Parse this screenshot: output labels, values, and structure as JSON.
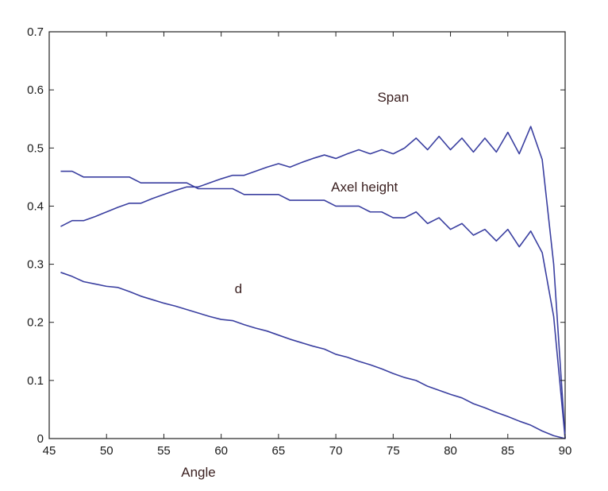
{
  "chart_data": {
    "type": "line",
    "title": "",
    "xlabel": "Angle",
    "ylabel": "",
    "xlim": [
      45,
      90
    ],
    "ylim": [
      0,
      0.7
    ],
    "xticks": [
      "45",
      "50",
      "55",
      "60",
      "65",
      "70",
      "75",
      "80",
      "85",
      "90"
    ],
    "yticks": [
      "0",
      "0.1",
      "0.2",
      "0.3",
      "0.4",
      "0.5",
      "0.6",
      "0.7"
    ],
    "grid": false,
    "legend": "none",
    "series": [
      {
        "name": "Span",
        "color": "#3a3fa0",
        "x": [
          46,
          47,
          48,
          49,
          50,
          51,
          52,
          53,
          54,
          55,
          56,
          57,
          58,
          59,
          60,
          61,
          62,
          63,
          64,
          65,
          66,
          67,
          68,
          69,
          70,
          71,
          72,
          73,
          74,
          75,
          76,
          77,
          78,
          79,
          80,
          81,
          82,
          83,
          84,
          85,
          86,
          87,
          88,
          89,
          90
        ],
        "y": [
          0.365,
          0.375,
          0.375,
          0.382,
          0.39,
          0.398,
          0.405,
          0.405,
          0.413,
          0.42,
          0.427,
          0.433,
          0.433,
          0.44,
          0.447,
          0.453,
          0.453,
          0.46,
          0.467,
          0.473,
          0.467,
          0.475,
          0.482,
          0.488,
          0.482,
          0.49,
          0.497,
          0.49,
          0.497,
          0.49,
          0.5,
          0.517,
          0.497,
          0.52,
          0.497,
          0.517,
          0.493,
          0.517,
          0.493,
          0.527,
          0.49,
          0.537,
          0.48,
          0.3,
          0.0
        ]
      },
      {
        "name": "Axel height",
        "color": "#3a3fa0",
        "x": [
          46,
          47,
          48,
          49,
          50,
          51,
          52,
          53,
          54,
          55,
          56,
          57,
          58,
          59,
          60,
          61,
          62,
          63,
          64,
          65,
          66,
          67,
          68,
          69,
          70,
          71,
          72,
          73,
          74,
          75,
          76,
          77,
          78,
          79,
          80,
          81,
          82,
          83,
          84,
          85,
          86,
          87,
          88,
          89,
          90
        ],
        "y": [
          0.46,
          0.46,
          0.45,
          0.45,
          0.45,
          0.45,
          0.45,
          0.44,
          0.44,
          0.44,
          0.44,
          0.44,
          0.43,
          0.43,
          0.43,
          0.43,
          0.42,
          0.42,
          0.42,
          0.42,
          0.41,
          0.41,
          0.41,
          0.41,
          0.4,
          0.4,
          0.4,
          0.39,
          0.39,
          0.38,
          0.38,
          0.39,
          0.37,
          0.38,
          0.36,
          0.37,
          0.35,
          0.36,
          0.34,
          0.36,
          0.33,
          0.357,
          0.32,
          0.21,
          0.0
        ]
      },
      {
        "name": "d",
        "color": "#3a3fa0",
        "x": [
          46,
          47,
          48,
          49,
          50,
          51,
          52,
          53,
          54,
          55,
          56,
          57,
          58,
          59,
          60,
          61,
          62,
          63,
          64,
          65,
          66,
          67,
          68,
          69,
          70,
          71,
          72,
          73,
          74,
          75,
          76,
          77,
          78,
          79,
          80,
          81,
          82,
          83,
          84,
          85,
          86,
          87,
          88,
          89,
          90
        ],
        "y": [
          0.286,
          0.279,
          0.27,
          0.266,
          0.262,
          0.26,
          0.253,
          0.245,
          0.239,
          0.233,
          0.228,
          0.222,
          0.216,
          0.21,
          0.205,
          0.203,
          0.196,
          0.19,
          0.185,
          0.178,
          0.171,
          0.165,
          0.159,
          0.154,
          0.145,
          0.14,
          0.133,
          0.127,
          0.12,
          0.112,
          0.105,
          0.1,
          0.09,
          0.083,
          0.076,
          0.07,
          0.06,
          0.053,
          0.045,
          0.038,
          0.03,
          0.023,
          0.013,
          0.005,
          0.0
        ]
      }
    ],
    "annotations": [
      {
        "text": "Span",
        "x": 75,
        "y": 0.58
      },
      {
        "text": "Axel height",
        "x": 72.5,
        "y": 0.425
      },
      {
        "text": "d",
        "x": 61.5,
        "y": 0.25
      }
    ]
  }
}
